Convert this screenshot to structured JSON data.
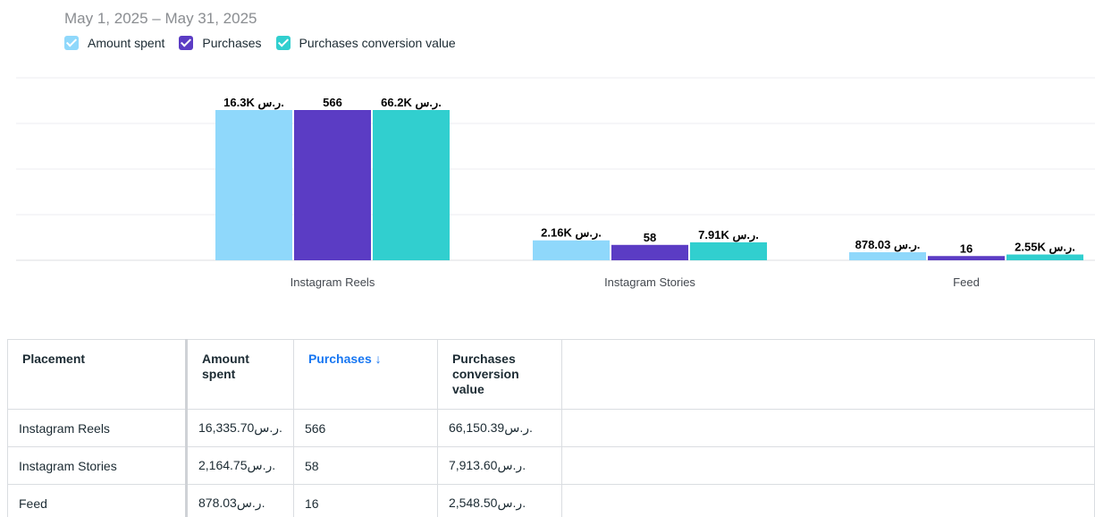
{
  "date_range": "May 1, 2025 – May 31, 2025",
  "legend": [
    {
      "label": "Amount spent",
      "color": "#8fd8fb"
    },
    {
      "label": "Purchases",
      "color": "#5b3cc4"
    },
    {
      "label": "Purchases conversion value",
      "color": "#31cfcf"
    }
  ],
  "chart_data": {
    "type": "bar",
    "categories": [
      "Instagram Reels",
      "Instagram Stories",
      "Feed"
    ],
    "series": [
      {
        "name": "Amount spent",
        "color": "#8fd8fb",
        "values": [
          16335.7,
          2164.75,
          878.03
        ],
        "labels": [
          "16.3K ر.س.",
          "2.16K ر.س.",
          "878.03 ر.س."
        ]
      },
      {
        "name": "Purchases",
        "color": "#5b3cc4",
        "values": [
          566,
          58,
          16
        ],
        "labels": [
          "566",
          "58",
          "16"
        ]
      },
      {
        "name": "Purchases conversion value",
        "color": "#31cfcf",
        "values": [
          66150.39,
          7913.6,
          2548.5
        ],
        "labels": [
          "66.2K ر.س.",
          "7.91K ر.س.",
          "2.55K ر.س."
        ]
      }
    ],
    "grid": true,
    "legend_position": "top-left"
  },
  "table": {
    "headers": {
      "placement": "Placement",
      "amount": "Amount spent",
      "purchases": "Purchases ↓",
      "conversion": "Purchases conversion value"
    },
    "rows": [
      {
        "placement": "Instagram Reels",
        "amount": "16,335.70ر.س.",
        "purchases": "566",
        "conversion": "66,150.39ر.س."
      },
      {
        "placement": "Instagram Stories",
        "amount": "2,164.75ر.س.",
        "purchases": "58",
        "conversion": "7,913.60ر.س."
      },
      {
        "placement": "Feed",
        "amount": "878.03ر.س.",
        "purchases": "16",
        "conversion": "2,548.50ر.س."
      }
    ]
  }
}
